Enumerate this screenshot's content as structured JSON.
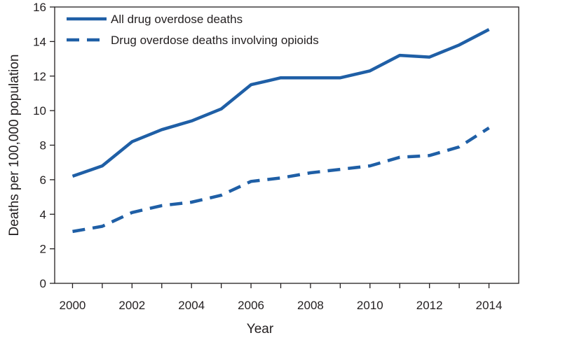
{
  "chart_data": {
    "type": "line",
    "title": "",
    "xlabel": "Year",
    "ylabel": "Deaths per 100,000 population",
    "x": [
      2000,
      2001,
      2002,
      2003,
      2004,
      2005,
      2006,
      2007,
      2008,
      2009,
      2010,
      2011,
      2012,
      2013,
      2014
    ],
    "xticks": [
      2000,
      2002,
      2004,
      2006,
      2008,
      2010,
      2012,
      2014
    ],
    "yticks": [
      0,
      2,
      4,
      6,
      8,
      10,
      12,
      14,
      16
    ],
    "xlim": [
      1999.4,
      2015
    ],
    "ylim": [
      0,
      16
    ],
    "grid": false,
    "legend_position": "top-left",
    "series_color": "#1f5fa6",
    "series": [
      {
        "name": "All drug overdose deaths",
        "style": "solid",
        "values": [
          6.2,
          6.8,
          8.2,
          8.9,
          9.4,
          10.1,
          11.5,
          11.9,
          11.9,
          11.9,
          12.3,
          13.2,
          13.1,
          13.8,
          14.7
        ]
      },
      {
        "name": "Drug overdose deaths involving opioids",
        "style": "dashed",
        "values": [
          3.0,
          3.3,
          4.1,
          4.5,
          4.7,
          5.1,
          5.9,
          6.1,
          6.4,
          6.6,
          6.8,
          7.3,
          7.4,
          7.9,
          9.0
        ]
      }
    ]
  }
}
